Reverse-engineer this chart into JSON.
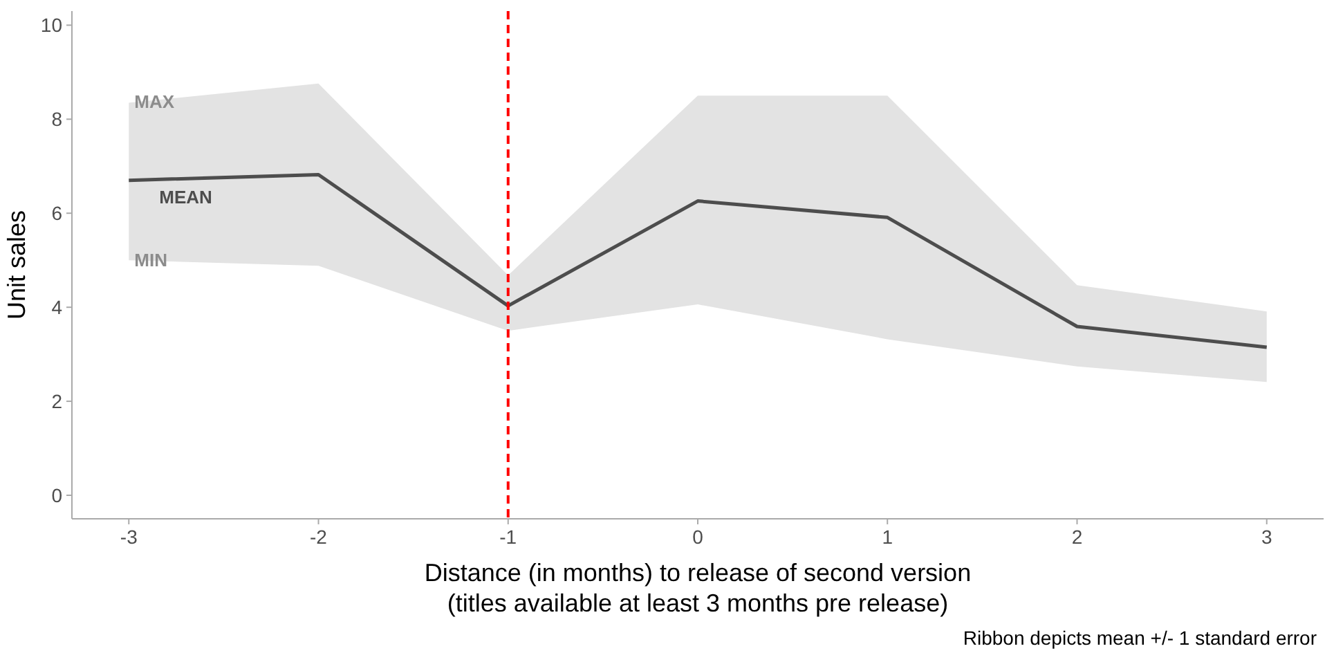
{
  "chart_data": {
    "type": "line",
    "xlabel": "Distance (in months) to release of second version\n(titles available at least 3 months pre release)",
    "ylabel": "Unit sales",
    "x": [
      -3,
      -2,
      -1,
      0,
      1,
      2,
      3
    ],
    "series": [
      {
        "color": "#4d4d4d",
        "values": [
          6.7,
          6.82,
          4.03,
          6.26,
          5.91,
          3.59,
          3.15
        ],
        "lower": [
          5.0,
          4.88,
          3.5,
          4.06,
          3.32,
          2.74,
          2.41
        ],
        "upper": [
          8.35,
          8.76,
          4.68,
          8.5,
          8.5,
          4.47,
          3.91
        ]
      }
    ],
    "xlim": [
      -3.3,
      3.3
    ],
    "ylim": [
      -0.5,
      10.3
    ],
    "xticks": [
      -3,
      -2,
      -1,
      0,
      1,
      2,
      3
    ],
    "yticks": [
      0,
      2,
      4,
      6,
      8,
      10
    ],
    "ref_lines": [
      {
        "axis": "x",
        "value": -1,
        "color": "#ff0000",
        "line_style": "dashed"
      }
    ],
    "annotations": [
      "MAX",
      "MEAN",
      "MIN",
      "Ribbon depicts mean +/- 1 standard error"
    ],
    "grid": false
  }
}
